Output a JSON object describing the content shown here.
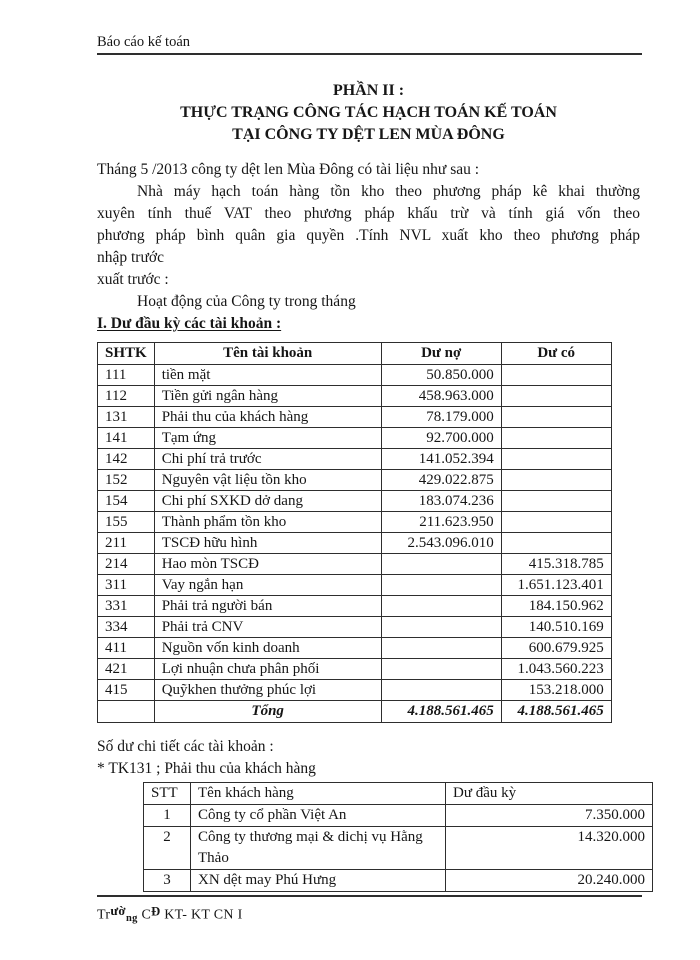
{
  "header": {
    "title": "Báo cáo kế toán"
  },
  "title": {
    "line1": "PHẦN II :",
    "line2": "THỰC TRẠNG CÔNG TÁC HẠCH TOÁN KẾ TOÁN",
    "line3": "TẠI CÔNG TY DỆT LEN MÙA ĐÔNG"
  },
  "intro": {
    "lines": [
      "Tháng 5 /2013  công ty dệt len Mùa Đông có tài liệu như sau :",
      "Nhà máy hạch toán hàng tồn kho theo phương pháp kê khai thường",
      "xuyên tính thuế VAT theo phương pháp khấu trừ và tính giá vốn theo",
      "phương pháp bình quân gia quyền .Tính NVL xuất kho theo phương pháp",
      "nhập trước",
      "xuất trước :",
      "Hoạt động của Công ty trong tháng"
    ]
  },
  "section1": {
    "heading": "I. Dư đầu kỳ các tài khoản :"
  },
  "table1": {
    "columns": [
      "SHTK",
      "Tên tài khoản",
      "Dư nợ",
      "Dư có"
    ],
    "rows": [
      [
        "111",
        "tiền mặt",
        "50.850.000",
        ""
      ],
      [
        "112",
        "Tiền gửi ngân hàng",
        "458.963.000",
        ""
      ],
      [
        "131",
        "Phải thu của khách hàng",
        "78.179.000",
        ""
      ],
      [
        "141",
        "Tạm ứng",
        "92.700.000",
        ""
      ],
      [
        "142",
        "Chi phí trả trước",
        "141.052.394",
        ""
      ],
      [
        "152",
        "Nguyên vật liệu tồn kho",
        "429.022.875",
        ""
      ],
      [
        "154",
        "Chi phí SXKD dở dang",
        "183.074.236",
        ""
      ],
      [
        "155",
        "Thành phẩm tồn kho",
        "211.623.950",
        ""
      ],
      [
        "211",
        "TSCĐ hữu hình",
        "2.543.096.010",
        ""
      ],
      [
        "214",
        "Hao mòn TSCĐ",
        "",
        "415.318.785"
      ],
      [
        "311",
        "Vay ngắn hạn",
        "",
        "1.651.123.401"
      ],
      [
        "331",
        "Phải trả người bán",
        "",
        "184.150.962"
      ],
      [
        "334",
        "Phải trả CNV",
        "",
        "140.510.169"
      ],
      [
        "411",
        "Nguồn vốn kinh doanh",
        "",
        "600.679.925"
      ],
      [
        "421",
        "Lợi nhuận chưa phân phối",
        "",
        "1.043.560.223"
      ],
      [
        "415",
        "Quỹkhen thưởng phúc lợi",
        "",
        "153.218.000"
      ]
    ],
    "total": {
      "label": "Tổng",
      "du_no": "4.188.561.465",
      "du_co": "4.188.561.465"
    }
  },
  "section2": {
    "line1": "Số dư chi tiết các tài khoản :",
    "line2": "* TK131 ; Phải thu của khách hàng"
  },
  "table2": {
    "columns": [
      "STT",
      "Tên khách hàng",
      "Dư đầu kỳ"
    ],
    "rows": [
      [
        "1",
        "Công ty cổ phần Việt An",
        "7.350.000"
      ],
      [
        "2",
        "Công ty thương mại & dichị vụ Hằng Thảo",
        "14.320.000"
      ],
      [
        "3",
        "XN dệt may Phú Hưng",
        "20.240.000"
      ]
    ]
  },
  "footer": {
    "s0": "Tr",
    "s1": "ườ",
    "s2": "ng",
    "s3": " C",
    "s4": "Đ",
    "s5": " KT- KT CN I"
  }
}
